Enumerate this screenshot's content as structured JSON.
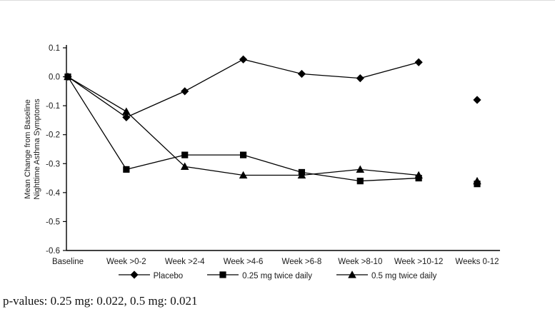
{
  "chart_data": {
    "type": "line",
    "title": "",
    "xlabel": "",
    "ylabel_lines": [
      "Mean Change from Baseline",
      "Nighttime Asthma Symptoms"
    ],
    "categories": [
      "Baseline",
      "Week >0-2",
      "Week >2-4",
      "Week >4-6",
      "Week >6-8",
      "Week >8-10",
      "Week >10-12",
      "Weeks 0-12"
    ],
    "ylim": [
      -0.6,
      0.1
    ],
    "yticks": [
      0.1,
      0.0,
      -0.1,
      -0.2,
      -0.3,
      -0.4,
      -0.5,
      -0.6
    ],
    "ytick_labels": [
      "0.1",
      "0.0",
      "-0.1",
      "-0.2",
      "-0.3",
      "-0.4",
      "-0.5",
      "-0.6"
    ],
    "grid": false,
    "legend_position": "bottom",
    "last_point_disconnected": true,
    "line_color": "#000000",
    "series": [
      {
        "name": "Placebo",
        "marker": "diamond",
        "values": [
          0.0,
          -0.14,
          -0.05,
          0.06,
          0.01,
          -0.005,
          0.05,
          -0.08
        ]
      },
      {
        "name": "0.25 mg twice daily",
        "marker": "square",
        "values": [
          0.0,
          -0.32,
          -0.27,
          -0.27,
          -0.33,
          -0.36,
          -0.35,
          -0.37
        ]
      },
      {
        "name": "0.5 mg twice daily",
        "marker": "triangle",
        "values": [
          0.0,
          -0.12,
          -0.31,
          -0.34,
          -0.34,
          -0.32,
          -0.34,
          -0.36
        ]
      }
    ]
  },
  "footnote": "p-values: 0.25 mg: 0.022, 0.5 mg: 0.021"
}
